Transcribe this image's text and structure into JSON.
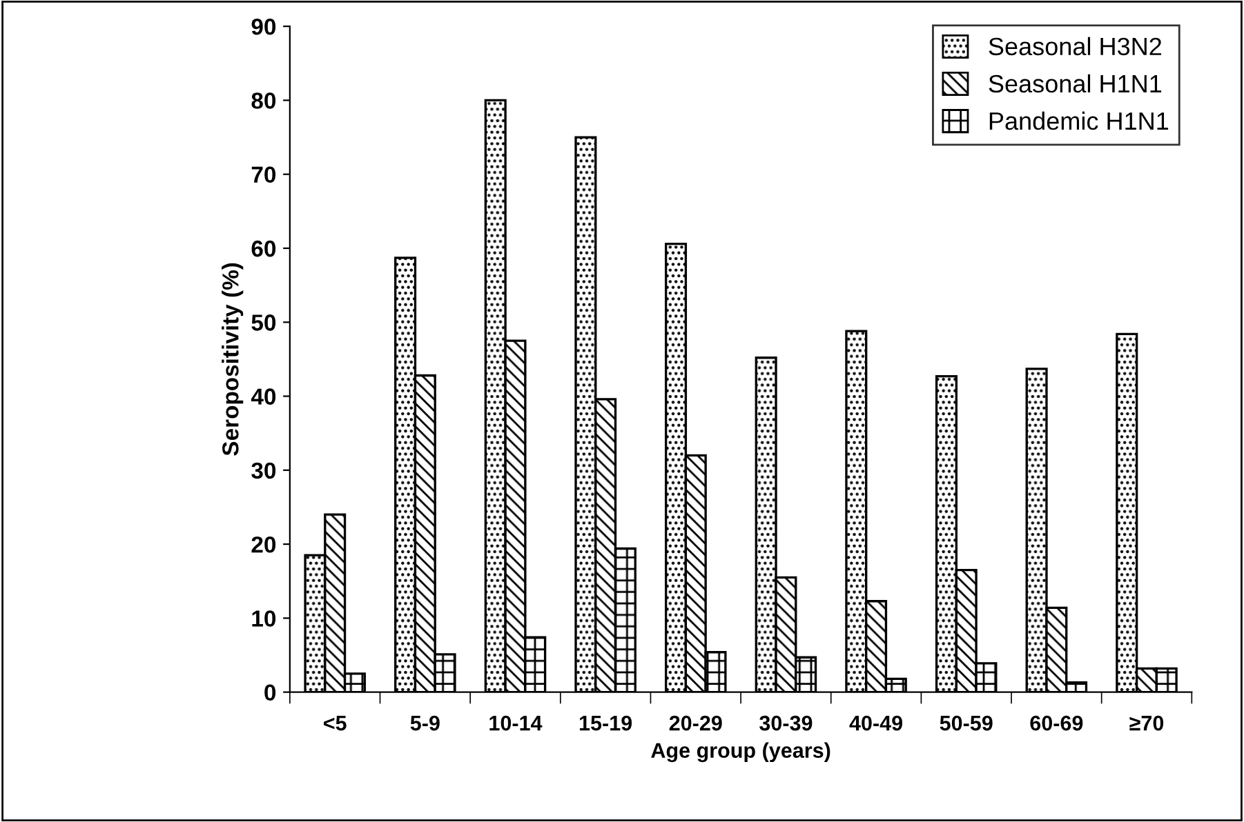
{
  "chart_data": {
    "type": "bar",
    "xlabel": "Age group (years)",
    "ylabel": "Seropositivity (%)",
    "categories": [
      "<5",
      "5-9",
      "10-14",
      "15-19",
      "20-29",
      "30-39",
      "40-49",
      "50-59",
      "60-69",
      "≥70"
    ],
    "series": [
      {
        "name": "Seasonal H3N2",
        "color": "#000000",
        "values": [
          18.5,
          58.7,
          80,
          75,
          60.6,
          45.2,
          48.8,
          42.7,
          43.7,
          48.4
        ]
      },
      {
        "name": "Seasonal H1N1",
        "color": "#000000",
        "values": [
          24,
          42.8,
          47.5,
          39.6,
          32,
          15.5,
          12.3,
          16.5,
          11.4,
          3.2
        ]
      },
      {
        "name": "Pandemic H1N1",
        "color": "#000000",
        "values": [
          2.5,
          5.1,
          7.4,
          19.4,
          5.4,
          4.7,
          1.8,
          3.9,
          1.3,
          3.2
        ]
      }
    ],
    "ylim": [
      0,
      90
    ],
    "yticks": [
      0,
      10,
      20,
      30,
      40,
      50,
      60,
      70,
      80,
      90
    ],
    "grid": false,
    "legend": "top right"
  }
}
